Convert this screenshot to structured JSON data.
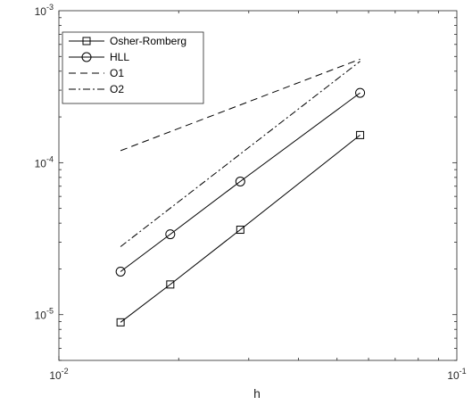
{
  "chart_data": {
    "type": "line",
    "xscale": "log",
    "yscale": "log",
    "xlim": [
      0.01,
      0.1
    ],
    "ylim": [
      5e-06,
      0.001
    ],
    "xlabel": "h",
    "ylabel": "",
    "grid": false,
    "legend_position": "top-left",
    "x_ticks": [
      {
        "value": 0.01,
        "base": "10",
        "exp": "-2"
      },
      {
        "value": 0.1,
        "base": "10",
        "exp": "-1"
      }
    ],
    "y_ticks": [
      {
        "value": 1e-05,
        "base": "10",
        "exp": "-5"
      },
      {
        "value": 0.0001,
        "base": "10",
        "exp": "-4"
      },
      {
        "value": 0.001,
        "base": "10",
        "exp": "-3"
      }
    ],
    "series": [
      {
        "name": "Osher-Romberg",
        "marker": "square",
        "dash": "",
        "x": [
          0.01429,
          0.01905,
          0.02857,
          0.05714
        ],
        "y": [
          8.9e-06,
          1.58e-05,
          3.62e-05,
          0.000152
        ]
      },
      {
        "name": "HLL",
        "marker": "circle",
        "dash": "",
        "x": [
          0.01429,
          0.01905,
          0.02857,
          0.05714
        ],
        "y": [
          1.92e-05,
          3.38e-05,
          7.52e-05,
          0.000288
        ]
      },
      {
        "name": "O1",
        "marker": "none",
        "dash": "8,5",
        "x": [
          0.01429,
          0.05714
        ],
        "y": [
          0.00012,
          0.00048
        ]
      },
      {
        "name": "O2",
        "marker": "none",
        "dash": "8,3,2,3",
        "x": [
          0.01429,
          0.05714
        ],
        "y": [
          2.8e-05,
          0.000465
        ]
      }
    ]
  }
}
